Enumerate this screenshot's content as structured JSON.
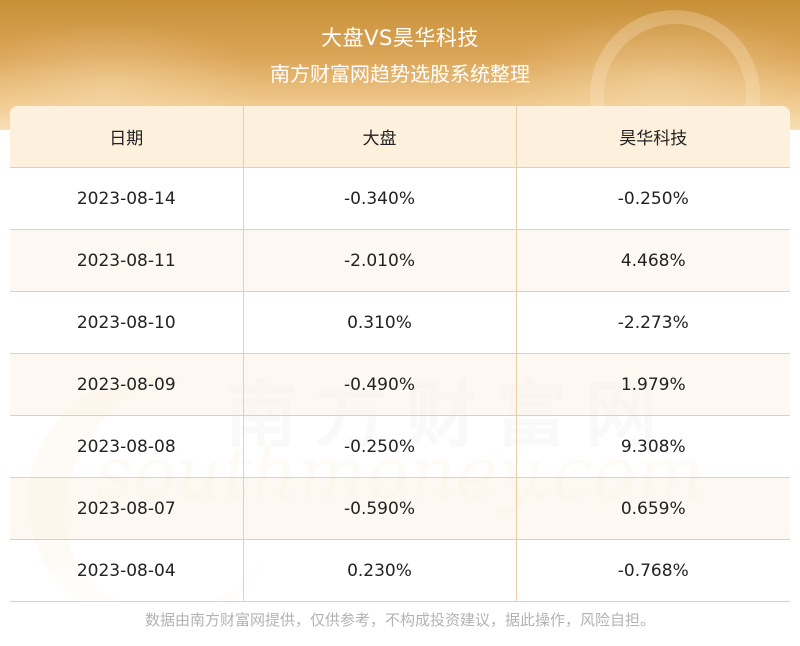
{
  "header": {
    "title": "大盘VS昊华科技",
    "subtitle": "南方财富网趋势选股系统整理"
  },
  "table": {
    "columns": [
      "日期",
      "大盘",
      "昊华科技"
    ],
    "rows": [
      [
        "2023-08-14",
        "-0.340%",
        "-0.250%"
      ],
      [
        "2023-08-11",
        "-2.010%",
        "4.468%"
      ],
      [
        "2023-08-10",
        "0.310%",
        "-2.273%"
      ],
      [
        "2023-08-09",
        "-0.490%",
        "1.979%"
      ],
      [
        "2023-08-08",
        "-0.250%",
        "9.308%"
      ],
      [
        "2023-08-07",
        "-0.590%",
        "0.659%"
      ],
      [
        "2023-08-04",
        "0.230%",
        "-0.768%"
      ]
    ]
  },
  "watermark": {
    "cn": "南方财富网",
    "en": "southmoney.com"
  },
  "footer": {
    "disclaimer": "数据由南方财富网提供，仅供参考，不构成投资建议，据此操作，风险自担。"
  },
  "colors": {
    "banner": "#d49e4f",
    "header_row": "#fdf0dc",
    "grid": "#e8cfaa",
    "footer_text": "#b3b3b3"
  }
}
